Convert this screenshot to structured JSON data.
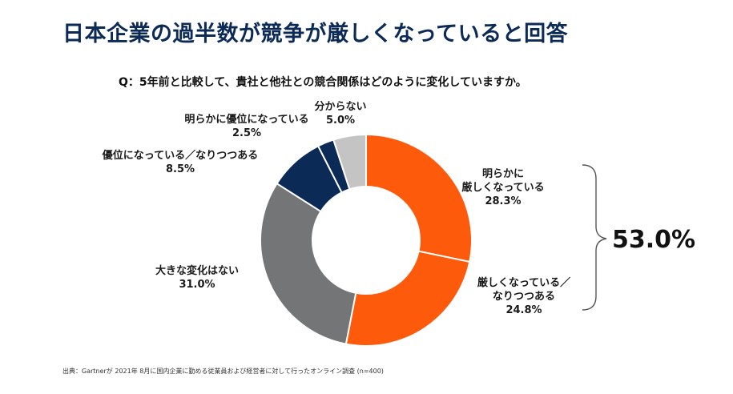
{
  "title": "日本企業の過半数が競争が厳しくなっていると回答",
  "question": "Q：5年前と比較して、貴社と他社との競合関係はどのように変化していますか。",
  "source": "出典：Gartnerが 2021年 8月に国内企業に勤める従業員および経営者に対して行ったオンライン調査 (n=400)",
  "chart_data": {
    "type": "pie",
    "style": "donut",
    "categories": [
      "明らかに厳しくなっている",
      "厳しくなっている／なりつつある",
      "大きな変化はない",
      "優位になっている／なりつつある",
      "明らかに優位になっている",
      "分からない"
    ],
    "values": [
      28.3,
      24.8,
      31.0,
      8.5,
      2.5,
      5.0
    ],
    "colors": [
      "#fd5a0c",
      "#fd5a0c",
      "#737577",
      "#0b2a55",
      "#0b2a55",
      "#c4c4c4"
    ],
    "labels": [
      {
        "lines": [
          "明らかに",
          "厳しくなっている"
        ],
        "value": "28.3%"
      },
      {
        "lines": [
          "厳しくなっている／",
          "なりつつある"
        ],
        "value": "24.8%"
      },
      {
        "lines": [
          "大きな変化はない"
        ],
        "value": "31.0%"
      },
      {
        "lines": [
          "優位になっている／なりつつある"
        ],
        "value": "8.5%"
      },
      {
        "lines": [
          "明らかに優位になっている"
        ],
        "value": "2.5%"
      },
      {
        "lines": [
          "分からない"
        ],
        "value": "5.0%"
      }
    ],
    "bracket_total": "53.0%"
  }
}
